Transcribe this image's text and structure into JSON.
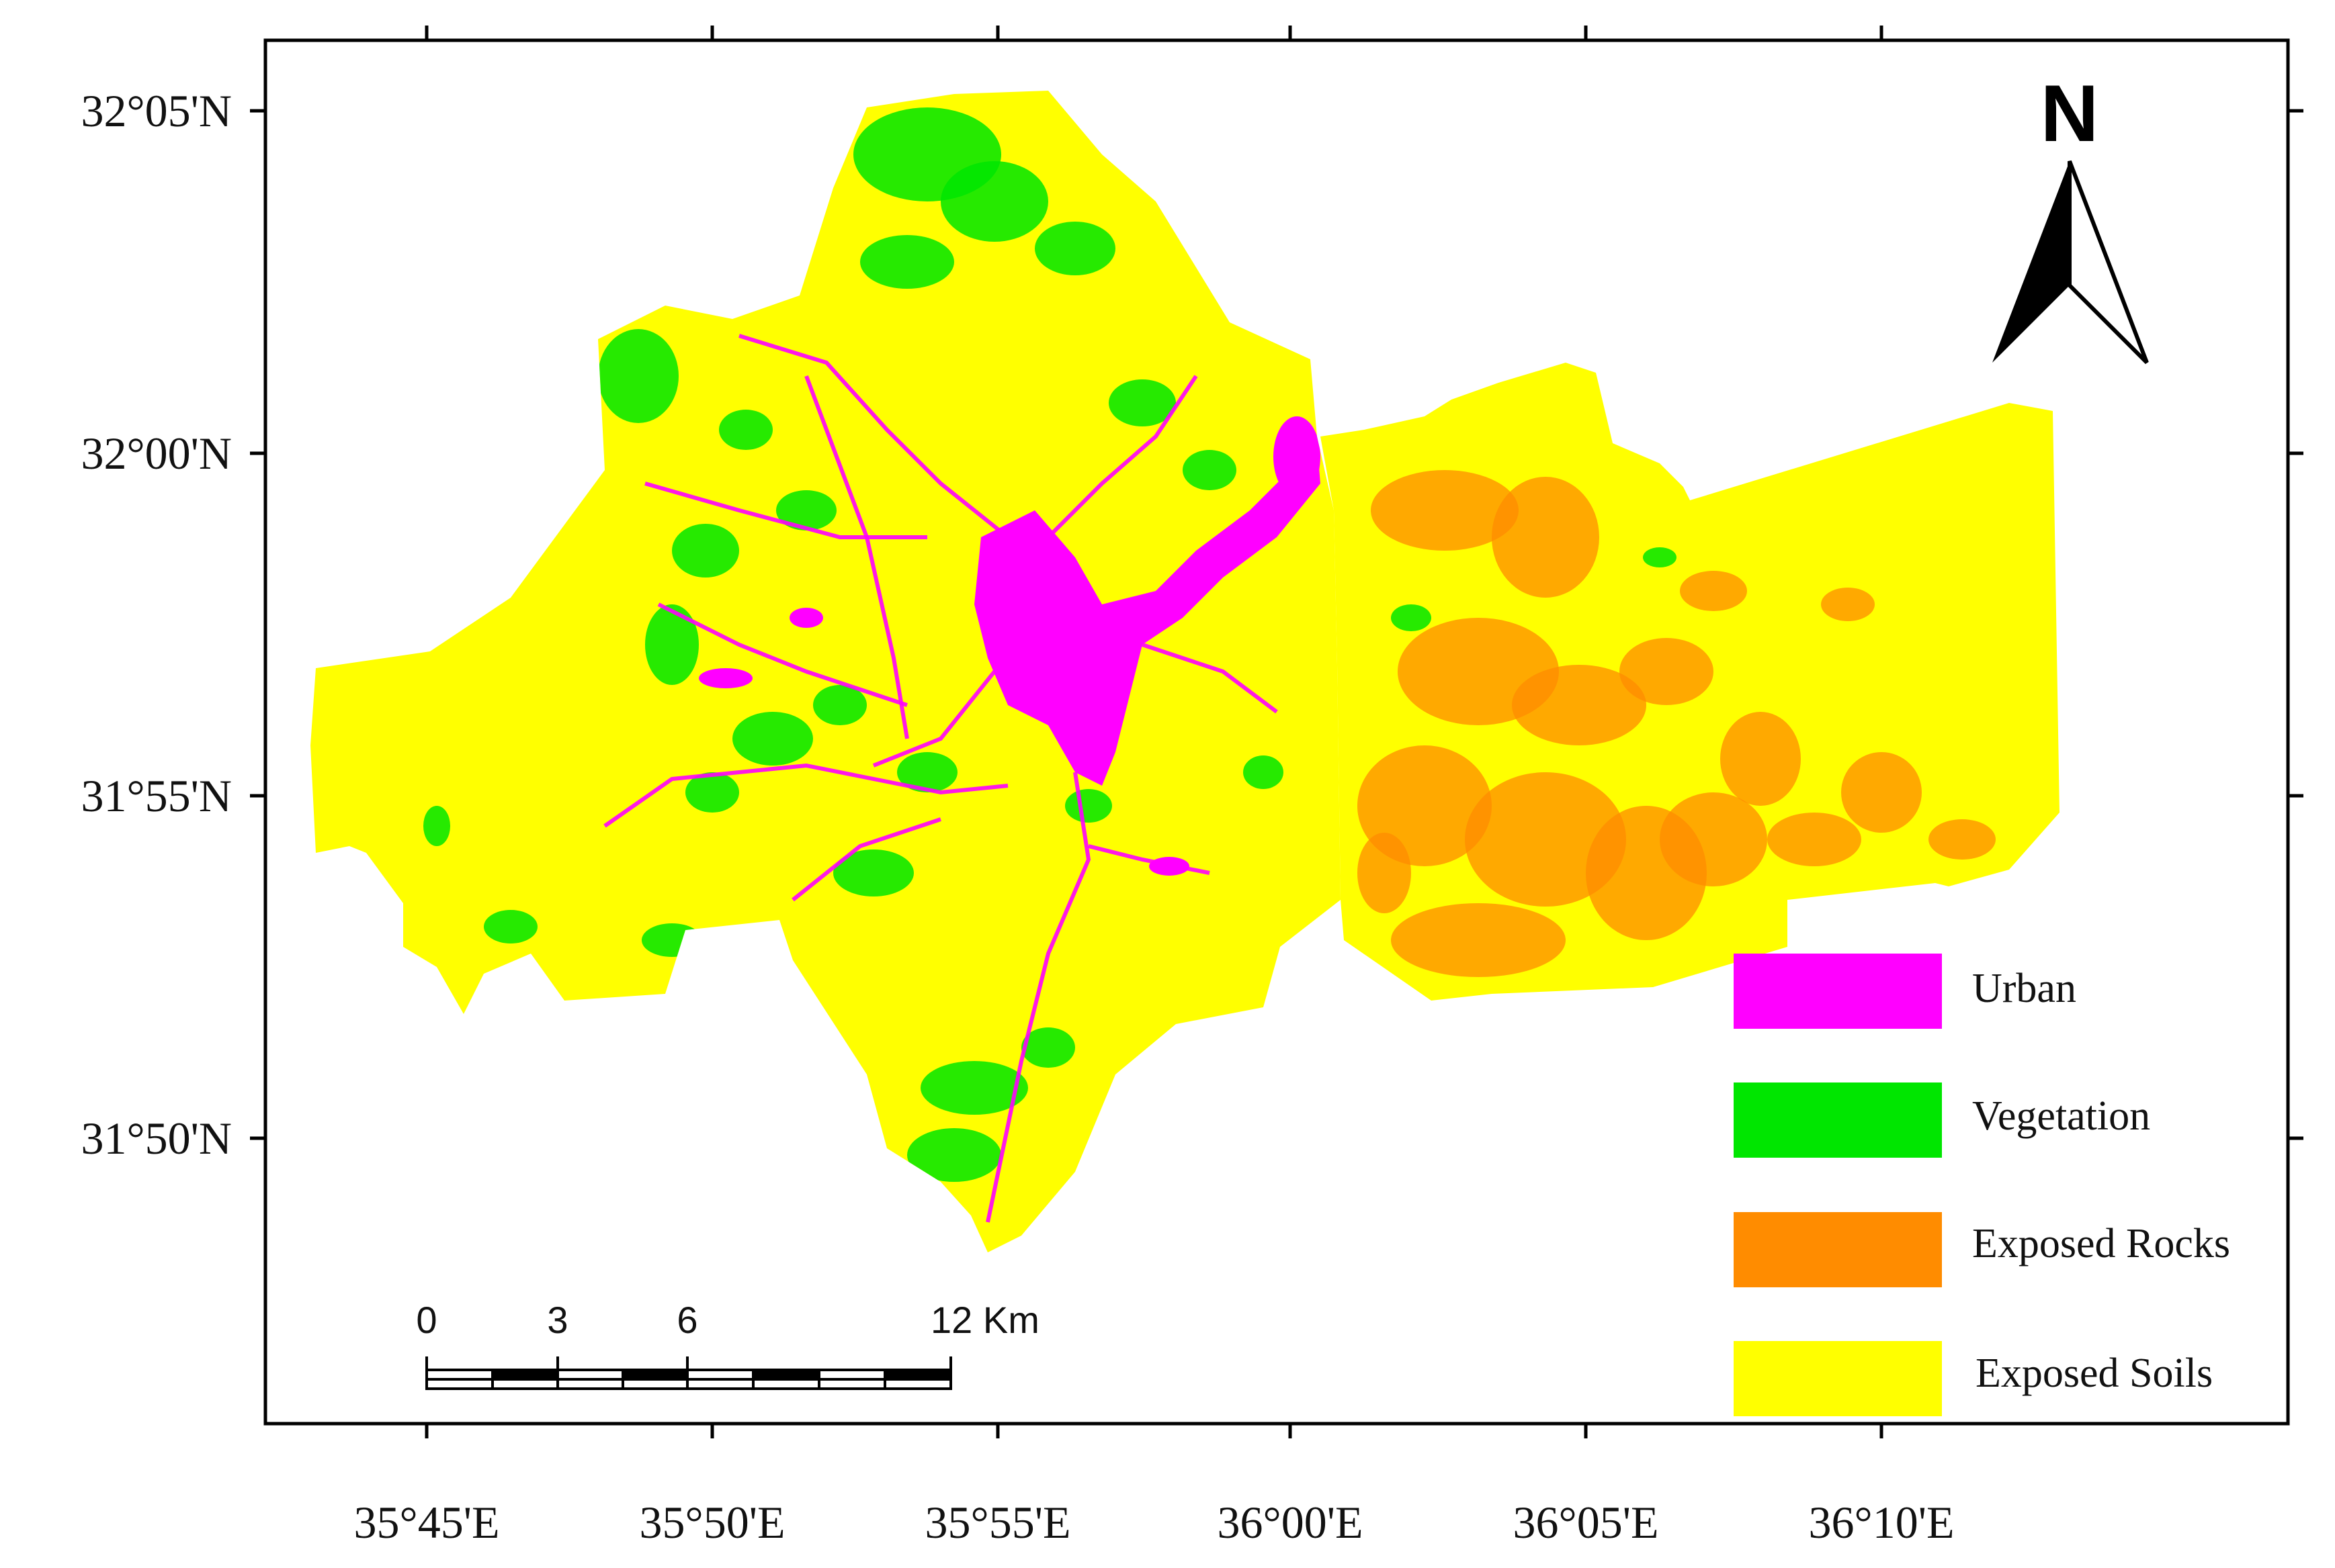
{
  "colors": {
    "urban": "#ff00ff",
    "vegetation": "#00e600",
    "exposed_rocks": "#ff8c00",
    "exposed_soils": "#ffff00",
    "frame": "#000000"
  },
  "map": {
    "lat_labels": [
      "32°05'N",
      "32°00'N",
      "31°55'N",
      "31°50'N"
    ],
    "lon_labels": [
      "35°45'E",
      "35°50'E",
      "35°55'E",
      "36°00'E",
      "36°05'E",
      "36°10'E"
    ],
    "north_label": "N"
  },
  "legend": {
    "items": [
      {
        "label": "Urban",
        "color": "#ff00ff"
      },
      {
        "label": "Vegetation",
        "color": "#00e600"
      },
      {
        "label": "Exposed Rocks",
        "color": "#ff8c00"
      },
      {
        "label": "Exposed Soils",
        "color": "#ffff00"
      }
    ]
  },
  "scale_bar": {
    "ticks": [
      "0",
      "3",
      "6",
      "12 Km"
    ]
  }
}
